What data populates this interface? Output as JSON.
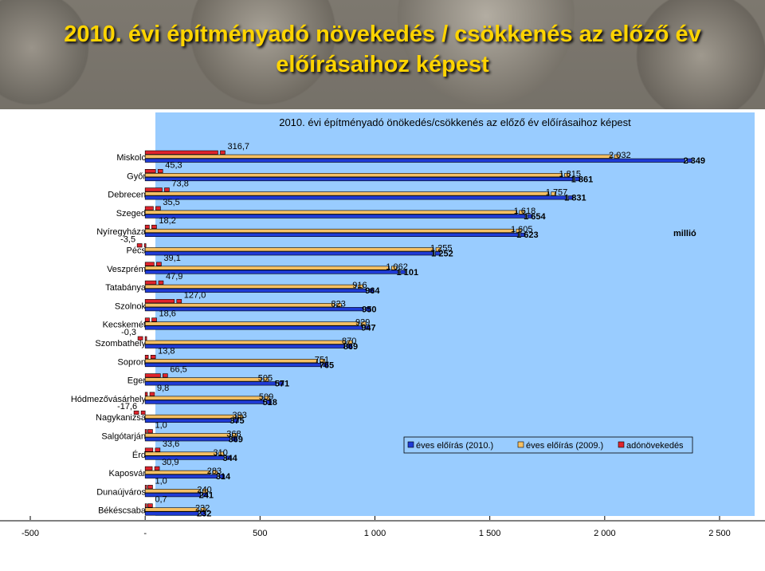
{
  "slide_title": "2010. évi építményadó növekedés / csökkenés az előző év előírásaihoz képest",
  "chart_data": {
    "type": "bar",
    "orientation": "horizontal",
    "title": "2010. évi építményadó önökedés/csökkenés az előző év előírásaihoz képest",
    "unit_label": "millió",
    "categories": [
      "Miskolc",
      "Győr",
      "Debrecen",
      "Szeged",
      "Nyíregyháza",
      "Pécs",
      "Veszprém",
      "Tatabánya",
      "Szolnok",
      "Kecskemét",
      "Szombathely",
      "Sopron",
      "Eger",
      "Hódmezővásárhely",
      "Nagykanizsa",
      "Salgótarján",
      "Érd",
      "Kaposvár",
      "Dunaújváros",
      "Békéscsaba"
    ],
    "series": [
      {
        "name": "éves előírás (2010.)",
        "color": "#1f3bd6",
        "values": [
          2349,
          1861,
          1831,
          1654,
          1623,
          1252,
          1101,
          964,
          950,
          947,
          869,
          765,
          571,
          518,
          375,
          369,
          344,
          314,
          241,
          232
        ]
      },
      {
        "name": "éves előírás (2009.)",
        "color": "#f5c064",
        "values": [
          2032,
          1815,
          1757,
          1618,
          1605,
          1255,
          1062,
          916,
          823,
          929,
          870,
          751,
          505,
          509,
          393,
          368,
          310,
          283,
          240,
          232
        ]
      },
      {
        "name": "adónövekedés",
        "color": "#e0242c",
        "values": [
          316.7,
          45.3,
          73.8,
          35.5,
          18.2,
          -3.5,
          39.1,
          47.9,
          127.0,
          18.6,
          -0.3,
          13.8,
          66.5,
          9.8,
          -17.6,
          1.0,
          33.6,
          30.9,
          1.0,
          0.7
        ]
      }
    ],
    "labels_2010": [
      "2 349",
      "1 861",
      "1 831",
      "1 654",
      "1 623",
      "1 252",
      "1 101",
      "964",
      "950",
      "947",
      "869",
      "765",
      "571",
      "518",
      "375",
      "369",
      "344",
      "314",
      "241",
      "232"
    ],
    "labels_2009": [
      "2 032",
      "1 815",
      "1 757",
      "1 618",
      "1 605",
      "1 255",
      "1 062",
      "916",
      "823",
      "929",
      "870",
      "751",
      "505",
      "509",
      "393",
      "368",
      "310",
      "283",
      "240",
      "232"
    ],
    "labels_change": [
      "316,7",
      "45,3",
      "73,8",
      "35,5",
      "18,2",
      "-3,5",
      "39,1",
      "47,9",
      "127,0",
      "18,6",
      "-0,3",
      "13,8",
      "66,5",
      "9,8",
      "-17,6",
      "1,0",
      "33,6",
      "30,9",
      "1,0",
      "0,7"
    ],
    "xlim": [
      -500,
      2500
    ],
    "xticks": [
      -500,
      0,
      500,
      1000,
      1500,
      2000,
      2500
    ],
    "xtick_labels": [
      "-500",
      "-",
      "500",
      "1 000",
      "1 500",
      "2 000",
      "2 500"
    ],
    "grid": false,
    "legend_position": "right-middle"
  }
}
